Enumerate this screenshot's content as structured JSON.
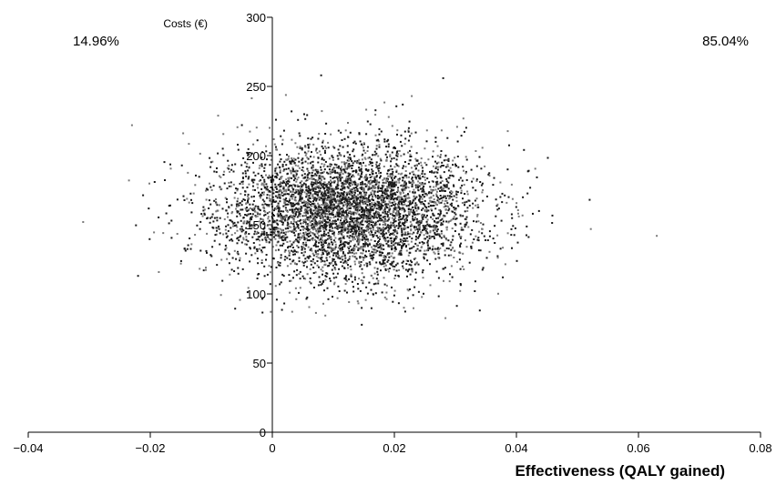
{
  "chart_data": {
    "type": "scatter",
    "title": "",
    "xlabel": "Effectiveness (QALY gained)",
    "ylabel": "Costs (€)",
    "xlim": [
      -0.04,
      0.08
    ],
    "ylim": [
      0,
      300
    ],
    "xticks": [
      -0.04,
      -0.02,
      0,
      0.02,
      0.04,
      0.06,
      0.08
    ],
    "xtick_labels": [
      "−0.04",
      "−0.02",
      "0",
      "0.02",
      "0.04",
      "0.06",
      "0.08"
    ],
    "yticks": [
      0,
      50,
      100,
      150,
      200,
      250,
      300
    ],
    "ytick_labels": [
      "0",
      "50",
      "100",
      "150",
      "200",
      "250",
      "300"
    ],
    "grid": false,
    "annotations": {
      "left_quadrant": "14.96%",
      "right_quadrant": "85.04%"
    },
    "point_cloud": {
      "n": 5000,
      "x_mean": 0.0125,
      "x_sd": 0.0105,
      "y_mean": 160,
      "y_sd": 24,
      "color": "#1a1a1a"
    },
    "outliers": [
      {
        "x": 0.063,
        "y": 142
      },
      {
        "x": -0.031,
        "y": 152
      },
      {
        "x": 0.034,
        "y": 88
      },
      {
        "x": 0.008,
        "y": 258
      },
      {
        "x": -0.023,
        "y": 222
      },
      {
        "x": 0.028,
        "y": 256
      },
      {
        "x": 0.052,
        "y": 168
      },
      {
        "x": -0.022,
        "y": 113
      }
    ]
  }
}
